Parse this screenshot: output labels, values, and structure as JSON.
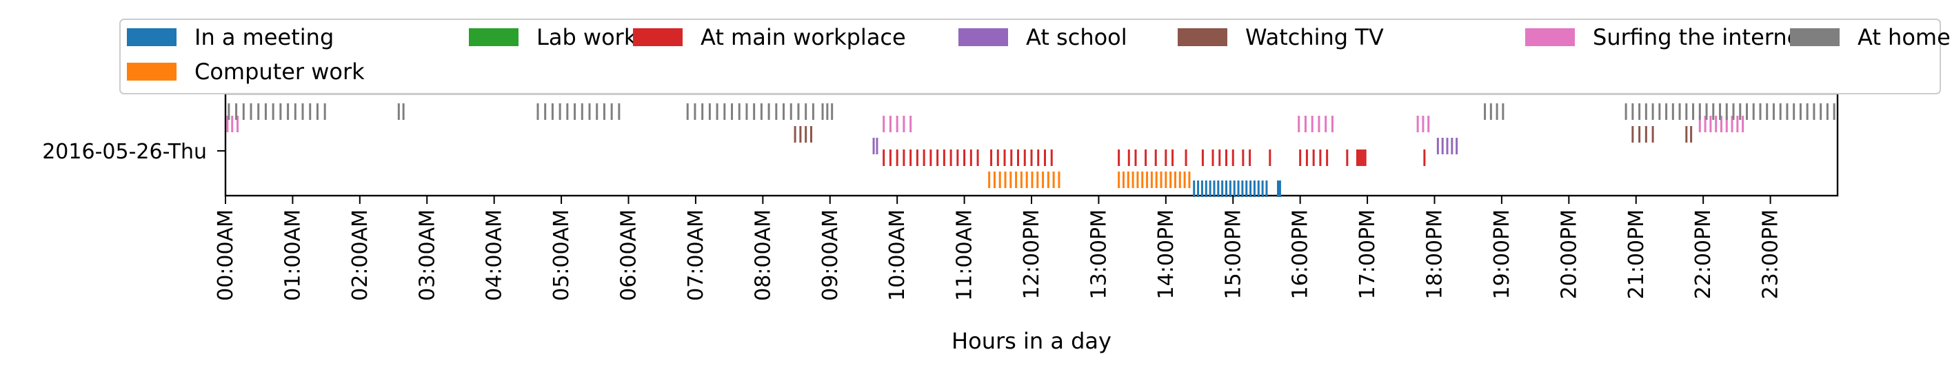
{
  "chart_data": {
    "type": "event-raster",
    "xlabel": "Hours in a day",
    "xlim": [
      0,
      24
    ],
    "x_ticks": [
      "00:00AM",
      "01:00AM",
      "02:00AM",
      "03:00AM",
      "04:00AM",
      "05:00AM",
      "06:00AM",
      "07:00AM",
      "08:00AM",
      "09:00AM",
      "10:00AM",
      "11:00AM",
      "12:00PM",
      "13:00PM",
      "14:00PM",
      "15:00PM",
      "16:00PM",
      "17:00PM",
      "18:00PM",
      "19:00PM",
      "20:00PM",
      "21:00PM",
      "22:00PM",
      "23:00PM"
    ],
    "y_category": "2016-05-26-Thu",
    "legend_placement": "top",
    "series": [
      {
        "name": "In a meeting",
        "color": "#1f77b4",
        "times": [
          14.42,
          14.48,
          14.54,
          14.6,
          14.66,
          14.72,
          14.78,
          14.84,
          14.9,
          14.96,
          15.02,
          15.08,
          15.14,
          15.2,
          15.26,
          15.32,
          15.38,
          15.44,
          15.5,
          15.67,
          15.7
        ]
      },
      {
        "name": "Computer work",
        "color": "#ff7f0e",
        "times": [
          11.37,
          11.45,
          11.53,
          11.61,
          11.69,
          11.77,
          11.85,
          11.93,
          12.01,
          12.09,
          12.17,
          12.25,
          12.33,
          12.41,
          13.3,
          13.37,
          13.44,
          13.51,
          13.58,
          13.65,
          13.72,
          13.79,
          13.86,
          13.93,
          14.0,
          14.07,
          14.14,
          14.21,
          14.28,
          14.35
        ]
      },
      {
        "name": "Lab work",
        "color": "#2ca02c",
        "times": []
      },
      {
        "name": "At main workplace",
        "color": "#d62728",
        "times": [
          9.8,
          9.9,
          10.0,
          10.1,
          10.2,
          10.3,
          10.4,
          10.5,
          10.6,
          10.7,
          10.8,
          10.9,
          11.0,
          11.1,
          11.2,
          11.4,
          11.5,
          11.6,
          11.7,
          11.8,
          11.9,
          12.0,
          12.1,
          12.2,
          12.3,
          13.3,
          13.45,
          13.55,
          13.7,
          13.85,
          14.0,
          14.1,
          14.3,
          14.55,
          14.7,
          14.8,
          14.9,
          15.0,
          15.15,
          15.25,
          15.55,
          16.0,
          16.1,
          16.2,
          16.3,
          16.4,
          16.7,
          16.85,
          16.88,
          16.91,
          16.94,
          16.97,
          17.85
        ]
      },
      {
        "name": "At school",
        "color": "#9467bd",
        "times": [
          9.65,
          9.7,
          18.05,
          18.12,
          18.19,
          18.26,
          18.33
        ]
      },
      {
        "name": "Watching TV",
        "color": "#8c564b",
        "times": [
          8.48,
          8.56,
          8.64,
          8.72,
          20.95,
          21.05,
          21.15,
          21.25,
          21.75,
          21.82
        ]
      },
      {
        "name": "Surfing the internet",
        "color": "#e377c2",
        "times": [
          0.03,
          0.1,
          0.18,
          9.8,
          9.9,
          10.0,
          10.1,
          10.2,
          15.98,
          16.08,
          16.18,
          16.28,
          16.38,
          16.48,
          17.75,
          17.83,
          17.91,
          21.95,
          22.03,
          22.11,
          22.19,
          22.27,
          22.35,
          22.43,
          22.51,
          22.59
        ]
      },
      {
        "name": "At home",
        "color": "#7f7f7f",
        "times": [
          0.05,
          0.16,
          0.27,
          0.38,
          0.49,
          0.6,
          0.71,
          0.82,
          0.93,
          1.04,
          1.15,
          1.26,
          1.37,
          1.48,
          2.58,
          2.65,
          4.65,
          4.76,
          4.87,
          4.98,
          5.09,
          5.2,
          5.31,
          5.42,
          5.53,
          5.64,
          5.75,
          5.86,
          6.88,
          6.99,
          7.1,
          7.21,
          7.32,
          7.43,
          7.54,
          7.65,
          7.76,
          7.87,
          7.98,
          8.09,
          8.2,
          8.31,
          8.42,
          8.53,
          8.64,
          8.75,
          8.89,
          8.96,
          9.03,
          18.75,
          18.84,
          18.93,
          19.02,
          20.85,
          20.95,
          21.05,
          21.15,
          21.25,
          21.35,
          21.45,
          21.55,
          21.65,
          21.75,
          21.85,
          21.95,
          22.05,
          22.15,
          22.25,
          22.35,
          22.45,
          22.55,
          22.65,
          22.75,
          22.85,
          22.95,
          23.05,
          23.15,
          23.25,
          23.35,
          23.45,
          23.55,
          23.65,
          23.75,
          23.85,
          23.95
        ]
      }
    ]
  }
}
